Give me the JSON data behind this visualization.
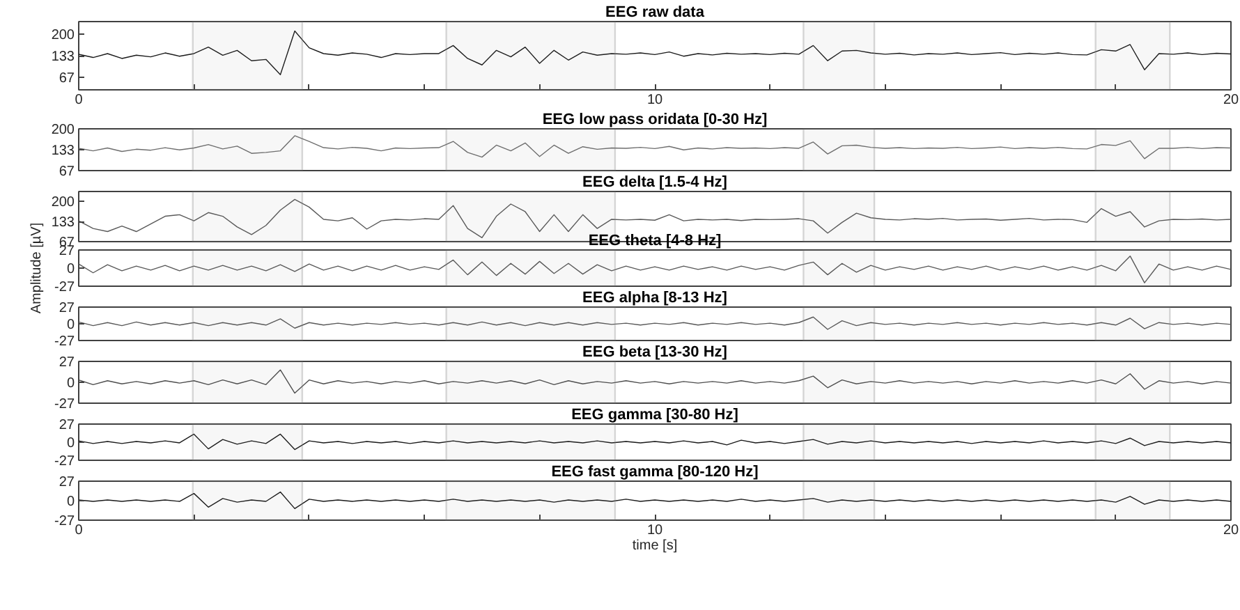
{
  "chart_data": [
    {
      "type": "line",
      "title": "EEG raw data",
      "xlim": [
        0,
        20
      ],
      "ylim": [
        28,
        239
      ],
      "yticks": [
        67,
        133,
        200
      ],
      "xticks": [
        0,
        {
          "value": 2,
          "label": null
        },
        {
          "value": 4,
          "label": null
        },
        {
          "value": 6,
          "label": null
        },
        {
          "value": 8,
          "label": null
        },
        10,
        {
          "value": 12,
          "label": null
        },
        {
          "value": 14,
          "label": null
        },
        {
          "value": 16,
          "label": null
        },
        {
          "value": 18,
          "label": null
        },
        20
      ],
      "x": [
        0,
        0.25,
        0.5,
        0.75,
        1,
        1.25,
        1.5,
        1.75,
        2,
        2.25,
        2.5,
        2.75,
        3,
        3.25,
        3.5,
        3.75,
        4,
        4.25,
        4.5,
        4.75,
        5,
        5.25,
        5.5,
        5.75,
        6,
        6.25,
        6.5,
        6.75,
        7,
        7.25,
        7.5,
        7.75,
        8,
        8.25,
        8.5,
        8.75,
        9,
        9.25,
        9.5,
        9.75,
        10,
        10.25,
        10.5,
        10.75,
        11,
        11.25,
        11.5,
        11.75,
        12,
        12.25,
        12.5,
        12.75,
        13,
        13.25,
        13.5,
        13.75,
        14,
        14.25,
        14.5,
        14.75,
        15,
        15.25,
        15.5,
        15.75,
        16,
        16.25,
        16.5,
        16.75,
        17,
        17.25,
        17.5,
        17.75,
        18,
        18.25,
        18.5,
        18.75,
        19,
        19.25,
        19.5,
        19.75,
        20
      ],
      "series": [
        {
          "color": "#1a1a1a",
          "values": [
            138,
            128,
            140,
            125,
            135,
            130,
            142,
            132,
            140,
            160,
            135,
            150,
            118,
            122,
            75,
            210,
            158,
            140,
            135,
            142,
            138,
            128,
            140,
            137,
            140,
            140,
            165,
            125,
            105,
            150,
            130,
            160,
            110,
            150,
            120,
            145,
            135,
            140,
            138,
            142,
            137,
            145,
            132,
            140,
            136,
            141,
            138,
            140,
            137,
            141,
            138,
            165,
            118,
            148,
            150,
            142,
            138,
            141,
            136,
            140,
            138,
            142,
            137,
            140,
            143,
            137,
            141,
            138,
            142,
            137,
            136,
            152,
            148,
            168,
            90,
            140,
            138,
            142,
            137,
            141,
            139
          ]
        }
      ],
      "bands": [
        {
          "axis": "x",
          "from": 1.98,
          "to": 3.88,
          "color": "#7f7f7f"
        },
        {
          "axis": "x",
          "from": 6.38,
          "to": 9.31,
          "color": "#7f7f7f"
        },
        {
          "axis": "x",
          "from": 12.58,
          "to": 13.81,
          "color": "#7f7f7f"
        },
        {
          "axis": "x",
          "from": 17.65,
          "to": 18.94,
          "color": "#7f7f7f"
        }
      ]
    },
    {
      "type": "line",
      "title": "EEG low pass oridata [0-30 Hz]",
      "xlim": [
        0,
        20
      ],
      "ylim": [
        67,
        200
      ],
      "yticks": [
        67,
        133,
        200
      ],
      "tick_labels": "y",
      "x": [
        0,
        0.25,
        0.5,
        0.75,
        1,
        1.25,
        1.5,
        1.75,
        2,
        2.25,
        2.5,
        2.75,
        3,
        3.25,
        3.5,
        3.75,
        4,
        4.25,
        4.5,
        4.75,
        5,
        5.25,
        5.5,
        5.75,
        6,
        6.25,
        6.5,
        6.75,
        7,
        7.25,
        7.5,
        7.75,
        8,
        8.25,
        8.5,
        8.75,
        9,
        9.25,
        9.5,
        9.75,
        10,
        10.25,
        10.5,
        10.75,
        11,
        11.25,
        11.5,
        11.75,
        12,
        12.25,
        12.5,
        12.75,
        13,
        13.25,
        13.5,
        13.75,
        14,
        14.25,
        14.5,
        14.75,
        15,
        15.25,
        15.5,
        15.75,
        16,
        16.25,
        16.5,
        16.75,
        17,
        17.25,
        17.5,
        17.75,
        18,
        18.25,
        18.5,
        18.75,
        19,
        19.25,
        19.5,
        19.75,
        20
      ],
      "series": [
        {
          "color": "#6e6e6e",
          "values": [
            138,
            130,
            139,
            128,
            135,
            132,
            140,
            133,
            139,
            150,
            136,
            145,
            122,
            125,
            130,
            178,
            160,
            140,
            136,
            141,
            138,
            130,
            139,
            137,
            139,
            140,
            160,
            125,
            110,
            148,
            130,
            155,
            112,
            148,
            122,
            143,
            135,
            139,
            138,
            141,
            137,
            144,
            133,
            139,
            136,
            140,
            138,
            139,
            137,
            140,
            138,
            158,
            120,
            146,
            148,
            141,
            138,
            140,
            137,
            139,
            138,
            141,
            137,
            139,
            142,
            137,
            140,
            138,
            141,
            137,
            136,
            150,
            147,
            162,
            105,
            138,
            138,
            141,
            137,
            140,
            139
          ]
        }
      ],
      "bands": [
        {
          "axis": "x",
          "from": 1.98,
          "to": 3.88,
          "color": "#7f7f7f"
        },
        {
          "axis": "x",
          "from": 6.38,
          "to": 9.31,
          "color": "#7f7f7f"
        },
        {
          "axis": "x",
          "from": 12.58,
          "to": 13.81,
          "color": "#7f7f7f"
        },
        {
          "axis": "x",
          "from": 17.65,
          "to": 18.94,
          "color": "#7f7f7f"
        }
      ]
    },
    {
      "type": "line",
      "title": "EEG delta [1.5-4 Hz]",
      "xlim": [
        0,
        20
      ],
      "ylim": [
        67,
        231
      ],
      "yticks": [
        67,
        133,
        200
      ],
      "tick_labels": "y",
      "x": [
        0,
        0.25,
        0.5,
        0.75,
        1,
        1.25,
        1.5,
        1.75,
        2,
        2.25,
        2.5,
        2.75,
        3,
        3.25,
        3.5,
        3.75,
        4,
        4.25,
        4.5,
        4.75,
        5,
        5.25,
        5.5,
        5.75,
        6,
        6.25,
        6.5,
        6.75,
        7,
        7.25,
        7.5,
        7.75,
        8,
        8.25,
        8.5,
        8.75,
        9,
        9.25,
        9.5,
        9.75,
        10,
        10.25,
        10.5,
        10.75,
        11,
        11.25,
        11.5,
        11.75,
        12,
        12.25,
        12.5,
        12.75,
        13,
        13.25,
        13.5,
        13.75,
        14,
        14.25,
        14.5,
        14.75,
        15,
        15.25,
        15.5,
        15.75,
        16,
        16.25,
        16.5,
        16.75,
        17,
        17.25,
        17.5,
        17.75,
        18,
        18.25,
        18.5,
        18.75,
        19,
        19.25,
        19.5,
        19.75,
        20
      ],
      "series": [
        {
          "color": "#595959",
          "values": [
            135,
            110,
            100,
            118,
            100,
            125,
            150,
            155,
            135,
            162,
            150,
            115,
            90,
            120,
            170,
            205,
            180,
            140,
            135,
            145,
            108,
            135,
            140,
            138,
            142,
            140,
            185,
            110,
            80,
            150,
            190,
            165,
            100,
            155,
            100,
            155,
            110,
            140,
            138,
            140,
            137,
            155,
            135,
            140,
            138,
            140,
            136,
            140,
            139,
            140,
            142,
            135,
            95,
            130,
            160,
            145,
            140,
            138,
            142,
            140,
            143,
            138,
            140,
            141,
            137,
            140,
            143,
            138,
            140,
            139,
            130,
            175,
            150,
            165,
            115,
            135,
            140,
            139,
            141,
            138,
            140
          ]
        }
      ],
      "bands": [
        {
          "axis": "x",
          "from": 1.98,
          "to": 3.88,
          "color": "#7f7f7f"
        },
        {
          "axis": "x",
          "from": 6.38,
          "to": 9.31,
          "color": "#7f7f7f"
        },
        {
          "axis": "x",
          "from": 12.58,
          "to": 13.81,
          "color": "#7f7f7f"
        },
        {
          "axis": "x",
          "from": 17.65,
          "to": 18.94,
          "color": "#7f7f7f"
        }
      ]
    },
    {
      "type": "line",
      "title": "EEG theta [4-8 Hz]",
      "ylabel": "Amplitude [µV]",
      "xlim": [
        0,
        20
      ],
      "ylim": [
        -27,
        27
      ],
      "yticks": [
        -27,
        0,
        27
      ],
      "tick_labels": "y",
      "x": [
        0,
        0.25,
        0.5,
        0.75,
        1,
        1.25,
        1.5,
        1.75,
        2,
        2.25,
        2.5,
        2.75,
        3,
        3.25,
        3.5,
        3.75,
        4,
        4.25,
        4.5,
        4.75,
        5,
        5.25,
        5.5,
        5.75,
        6,
        6.25,
        6.5,
        6.75,
        7,
        7.25,
        7.5,
        7.75,
        8,
        8.25,
        8.5,
        8.75,
        9,
        9.25,
        9.5,
        9.75,
        10,
        10.25,
        10.5,
        10.75,
        11,
        11.25,
        11.5,
        11.75,
        12,
        12.25,
        12.5,
        12.75,
        13,
        13.25,
        13.5,
        13.75,
        14,
        14.25,
        14.5,
        14.75,
        15,
        15.25,
        15.5,
        15.75,
        16,
        16.25,
        16.5,
        16.75,
        17,
        17.25,
        17.5,
        17.75,
        18,
        18.25,
        18.5,
        18.75,
        19,
        19.25,
        19.5,
        19.75,
        20
      ],
      "series": [
        {
          "color": "#595959",
          "values": [
            6,
            -7,
            5,
            -4,
            3,
            -3,
            4,
            -4,
            3,
            -3,
            4,
            -3,
            3,
            -4,
            5,
            -5,
            6,
            -3,
            3,
            -4,
            3,
            -3,
            4,
            -3,
            2,
            -2,
            12,
            -10,
            9,
            -11,
            7,
            -9,
            10,
            -8,
            7,
            -9,
            5,
            -4,
            3,
            -3,
            2,
            -3,
            3,
            -2,
            2,
            -3,
            3,
            -2,
            2,
            -3,
            4,
            9,
            -10,
            7,
            -6,
            4,
            -3,
            2,
            -2,
            3,
            -3,
            2,
            -2,
            3,
            -3,
            2,
            -2,
            3,
            -3,
            2,
            -3,
            4,
            -4,
            18,
            -22,
            6,
            -3,
            2,
            -3,
            3,
            -2
          ]
        }
      ],
      "bands": [
        {
          "axis": "x",
          "from": 1.98,
          "to": 3.88,
          "color": "#7f7f7f"
        },
        {
          "axis": "x",
          "from": 6.38,
          "to": 9.31,
          "color": "#7f7f7f"
        },
        {
          "axis": "x",
          "from": 12.58,
          "to": 13.81,
          "color": "#7f7f7f"
        },
        {
          "axis": "x",
          "from": 17.65,
          "to": 18.94,
          "color": "#7f7f7f"
        }
      ]
    },
    {
      "type": "line",
      "title": "EEG alpha [8-13 Hz]",
      "xlim": [
        0,
        20
      ],
      "ylim": [
        -27,
        27
      ],
      "yticks": [
        -27,
        0,
        27
      ],
      "tick_labels": "y",
      "x": [
        0,
        0.25,
        0.5,
        0.75,
        1,
        1.25,
        1.5,
        1.75,
        2,
        2.25,
        2.5,
        2.75,
        3,
        3.25,
        3.5,
        3.75,
        4,
        4.25,
        4.5,
        4.75,
        5,
        5.25,
        5.5,
        5.75,
        6,
        6.25,
        6.5,
        6.75,
        7,
        7.25,
        7.5,
        7.75,
        8,
        8.25,
        8.5,
        8.75,
        9,
        9.25,
        9.5,
        9.75,
        10,
        10.25,
        10.5,
        10.75,
        11,
        11.25,
        11.5,
        11.75,
        12,
        12.25,
        12.5,
        12.75,
        13,
        13.25,
        13.5,
        13.75,
        14,
        14.25,
        14.5,
        14.75,
        15,
        15.25,
        15.5,
        15.75,
        16,
        16.25,
        16.5,
        16.75,
        17,
        17.25,
        17.5,
        17.75,
        18,
        18.25,
        18.5,
        18.75,
        19,
        19.25,
        19.5,
        19.75,
        20
      ],
      "series": [
        {
          "color": "#595959",
          "values": [
            3,
            -3,
            2,
            -3,
            3,
            -2,
            2,
            -2,
            2,
            -3,
            2,
            -2,
            2,
            -2,
            8,
            -7,
            2,
            -2,
            1,
            -2,
            1,
            -1,
            2,
            -1,
            1,
            -2,
            2,
            -2,
            3,
            -2,
            2,
            -3,
            2,
            -2,
            2,
            -2,
            2,
            -1,
            1,
            -2,
            1,
            -1,
            2,
            -2,
            1,
            -1,
            2,
            -1,
            1,
            -2,
            2,
            11,
            -9,
            5,
            -3,
            2,
            -1,
            1,
            -2,
            1,
            -1,
            2,
            -1,
            1,
            -2,
            1,
            -1,
            2,
            -1,
            1,
            -2,
            2,
            -2,
            9,
            -8,
            2,
            -1,
            1,
            -2,
            1,
            -1
          ]
        }
      ],
      "bands": [
        {
          "axis": "x",
          "from": 1.98,
          "to": 3.88,
          "color": "#7f7f7f"
        },
        {
          "axis": "x",
          "from": 6.38,
          "to": 9.31,
          "color": "#7f7f7f"
        },
        {
          "axis": "x",
          "from": 12.58,
          "to": 13.81,
          "color": "#7f7f7f"
        },
        {
          "axis": "x",
          "from": 17.65,
          "to": 18.94,
          "color": "#7f7f7f"
        }
      ]
    },
    {
      "type": "line",
      "title": "EEG beta [13-30 Hz]",
      "xlim": [
        0,
        20
      ],
      "ylim": [
        -27,
        27
      ],
      "yticks": [
        -27,
        0,
        27
      ],
      "tick_labels": "y",
      "x": [
        0,
        0.25,
        0.5,
        0.75,
        1,
        1.25,
        1.5,
        1.75,
        2,
        2.25,
        2.5,
        2.75,
        3,
        3.25,
        3.5,
        3.75,
        4,
        4.25,
        4.5,
        4.75,
        5,
        5.25,
        5.5,
        5.75,
        6,
        6.25,
        6.5,
        6.75,
        7,
        7.25,
        7.5,
        7.75,
        8,
        8.25,
        8.5,
        8.75,
        9,
        9.25,
        9.5,
        9.75,
        10,
        10.25,
        10.5,
        10.75,
        11,
        11.25,
        11.5,
        11.75,
        12,
        12.25,
        12.5,
        12.75,
        13,
        13.25,
        13.5,
        13.75,
        14,
        14.25,
        14.5,
        14.75,
        15,
        15.25,
        15.5,
        15.75,
        16,
        16.25,
        16.5,
        16.75,
        17,
        17.25,
        17.5,
        17.75,
        18,
        18.25,
        18.5,
        18.75,
        19,
        19.25,
        19.5,
        19.75,
        20
      ],
      "series": [
        {
          "color": "#4d4d4d",
          "values": [
            3,
            -3,
            2,
            -2,
            1,
            -2,
            2,
            -1,
            2,
            -3,
            3,
            -2,
            3,
            -3,
            16,
            -14,
            3,
            -2,
            2,
            -1,
            1,
            -2,
            1,
            -1,
            2,
            -2,
            1,
            -1,
            2,
            -1,
            2,
            -2,
            3,
            -3,
            2,
            -2,
            1,
            -1,
            2,
            -1,
            1,
            -2,
            1,
            -1,
            1,
            -1,
            2,
            -1,
            1,
            -1,
            2,
            8,
            -7,
            3,
            -2,
            1,
            -1,
            2,
            -1,
            1,
            -1,
            1,
            -2,
            1,
            -1,
            2,
            -1,
            1,
            -1,
            2,
            -1,
            3,
            -2,
            11,
            -9,
            2,
            -1,
            1,
            -2,
            1,
            -1
          ]
        }
      ],
      "bands": [
        {
          "axis": "x",
          "from": 1.98,
          "to": 3.88,
          "color": "#7f7f7f"
        },
        {
          "axis": "x",
          "from": 6.38,
          "to": 9.31,
          "color": "#7f7f7f"
        },
        {
          "axis": "x",
          "from": 12.58,
          "to": 13.81,
          "color": "#7f7f7f"
        },
        {
          "axis": "x",
          "from": 17.65,
          "to": 18.94,
          "color": "#7f7f7f"
        }
      ]
    },
    {
      "type": "line",
      "title": "EEG gamma [30-80 Hz]",
      "xlim": [
        0,
        20
      ],
      "ylim": [
        -27,
        27
      ],
      "yticks": [
        -27,
        0,
        27
      ],
      "tick_labels": "y",
      "x": [
        0,
        0.25,
        0.5,
        0.75,
        1,
        1.25,
        1.5,
        1.75,
        2,
        2.25,
        2.5,
        2.75,
        3,
        3.25,
        3.5,
        3.75,
        4,
        4.25,
        4.5,
        4.75,
        5,
        5.25,
        5.5,
        5.75,
        6,
        6.25,
        6.5,
        6.75,
        7,
        7.25,
        7.5,
        7.75,
        8,
        8.25,
        8.5,
        8.75,
        9,
        9.25,
        9.5,
        9.75,
        10,
        10.25,
        10.5,
        10.75,
        11,
        11.25,
        11.5,
        11.75,
        12,
        12.25,
        12.5,
        12.75,
        13,
        13.25,
        13.5,
        13.75,
        14,
        14.25,
        14.5,
        14.75,
        15,
        15.25,
        15.5,
        15.75,
        16,
        16.25,
        16.5,
        16.75,
        17,
        17.25,
        17.5,
        17.75,
        18,
        18.25,
        18.5,
        18.75,
        19,
        19.25,
        19.5,
        19.75,
        20
      ],
      "series": [
        {
          "color": "#1a1a1a",
          "values": [
            2,
            -2,
            1,
            -2,
            1,
            -1,
            2,
            -1,
            12,
            -10,
            4,
            -3,
            2,
            -2,
            12,
            -11,
            2,
            -1,
            1,
            -2,
            1,
            -1,
            1,
            -2,
            1,
            -1,
            2,
            -1,
            1,
            -1,
            1,
            -1,
            2,
            -1,
            1,
            -1,
            2,
            -1,
            1,
            -1,
            1,
            -1,
            2,
            -1,
            1,
            -4,
            3,
            -1,
            1,
            -2,
            1,
            4,
            -3,
            1,
            -1,
            2,
            -1,
            1,
            -1,
            1,
            -1,
            1,
            -2,
            1,
            -1,
            1,
            -1,
            2,
            -1,
            1,
            -1,
            2,
            -2,
            6,
            -5,
            1,
            -1,
            1,
            -1,
            1,
            -1
          ]
        }
      ],
      "bands": [
        {
          "axis": "x",
          "from": 1.98,
          "to": 3.88,
          "color": "#7f7f7f"
        },
        {
          "axis": "x",
          "from": 6.38,
          "to": 9.31,
          "color": "#7f7f7f"
        },
        {
          "axis": "x",
          "from": 12.58,
          "to": 13.81,
          "color": "#7f7f7f"
        },
        {
          "axis": "x",
          "from": 17.65,
          "to": 18.94,
          "color": "#7f7f7f"
        }
      ]
    },
    {
      "type": "line",
      "title": "EEG fast gamma [80-120 Hz]",
      "xlabel": "time [s]",
      "xlim": [
        0,
        20
      ],
      "ylim": [
        -27,
        27
      ],
      "yticks": [
        -27,
        0,
        27
      ],
      "xticks": [
        0,
        {
          "value": 2,
          "label": null
        },
        {
          "value": 4,
          "label": null
        },
        {
          "value": 6,
          "label": null
        },
        {
          "value": 8,
          "label": null
        },
        10,
        {
          "value": 12,
          "label": null
        },
        {
          "value": 14,
          "label": null
        },
        {
          "value": 16,
          "label": null
        },
        {
          "value": 18,
          "label": null
        },
        20
      ],
      "x": [
        0,
        0.25,
        0.5,
        0.75,
        1,
        1.25,
        1.5,
        1.75,
        2,
        2.25,
        2.5,
        2.75,
        3,
        3.25,
        3.5,
        3.75,
        4,
        4.25,
        4.5,
        4.75,
        5,
        5.25,
        5.5,
        5.75,
        6,
        6.25,
        6.5,
        6.75,
        7,
        7.25,
        7.5,
        7.75,
        8,
        8.25,
        8.5,
        8.75,
        9,
        9.25,
        9.5,
        9.75,
        10,
        10.25,
        10.5,
        10.75,
        11,
        11.25,
        11.5,
        11.75,
        12,
        12.25,
        12.5,
        12.75,
        13,
        13.25,
        13.5,
        13.75,
        14,
        14.25,
        14.5,
        14.75,
        15,
        15.25,
        15.5,
        15.75,
        16,
        16.25,
        16.5,
        16.75,
        17,
        17.25,
        17.5,
        17.75,
        18,
        18.25,
        18.5,
        18.75,
        19,
        19.25,
        19.5,
        19.75,
        20
      ],
      "series": [
        {
          "color": "#1a1a1a",
          "values": [
            1,
            -1,
            1,
            -1,
            1,
            -1,
            1,
            -1,
            10,
            -9,
            3,
            -2,
            1,
            -1,
            12,
            -11,
            2,
            -1,
            1,
            -1,
            1,
            -1,
            1,
            -1,
            1,
            -1,
            2,
            -1,
            1,
            -1,
            1,
            -1,
            1,
            -2,
            1,
            -1,
            1,
            -1,
            2,
            -1,
            1,
            -1,
            1,
            -1,
            1,
            -1,
            2,
            -1,
            1,
            -1,
            1,
            3,
            -2,
            1,
            -1,
            1,
            -1,
            1,
            -1,
            1,
            -1,
            1,
            -1,
            1,
            -1,
            1,
            -1,
            1,
            -1,
            1,
            -1,
            1,
            -2,
            6,
            -5,
            1,
            -1,
            1,
            -1,
            1,
            -1
          ]
        }
      ],
      "bands": [
        {
          "axis": "x",
          "from": 1.98,
          "to": 3.88,
          "color": "#7f7f7f"
        },
        {
          "axis": "x",
          "from": 6.38,
          "to": 9.31,
          "color": "#7f7f7f"
        },
        {
          "axis": "x",
          "from": 12.58,
          "to": 13.81,
          "color": "#7f7f7f"
        },
        {
          "axis": "x",
          "from": 17.65,
          "to": 18.94,
          "color": "#7f7f7f"
        }
      ]
    }
  ]
}
